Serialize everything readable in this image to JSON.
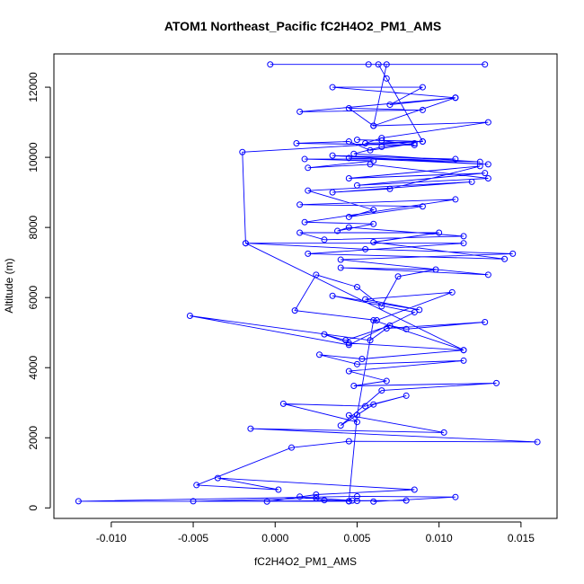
{
  "chart_data": {
    "type": "line",
    "title": "ATOM1 Northeast_Pacific fC2H4O2_PM1_AMS",
    "xlabel": "fC2H4O2_PM1_AMS",
    "ylabel": "Altitude (m)",
    "xlim": [
      -0.0135,
      0.0172
    ],
    "ylim": [
      -300,
      12950
    ],
    "xticks": [
      -0.01,
      -0.005,
      0.0,
      0.005,
      0.01,
      0.015
    ],
    "xtick_labels": [
      "-0.010",
      "-0.005",
      "0.000",
      "0.005",
      "0.010",
      "0.015"
    ],
    "yticks": [
      0,
      2000,
      4000,
      6000,
      8000,
      10000,
      12000
    ],
    "ytick_labels": [
      "0",
      "2000",
      "4000",
      "6000",
      "8000",
      "10000",
      "12000"
    ],
    "grid": false,
    "line_color": "#0000ff",
    "marker": "open-circle",
    "series": [
      {
        "name": "",
        "points": [
          [
            0.006,
            180
          ],
          [
            0.011,
            310
          ],
          [
            0.005,
            330
          ],
          [
            -0.012,
            190
          ],
          [
            0.0045,
            190
          ],
          [
            0.0047,
            210
          ],
          [
            0.0025,
            280
          ],
          [
            -0.005,
            190
          ],
          [
            0.008,
            210
          ],
          [
            0.005,
            200
          ],
          [
            0.003,
            220
          ],
          [
            0.0015,
            320
          ],
          [
            -0.0005,
            180
          ],
          [
            0.0025,
            380
          ],
          [
            0.0085,
            520
          ],
          [
            -0.0035,
            850
          ],
          [
            0.0002,
            520
          ],
          [
            -0.0048,
            650
          ],
          [
            0.001,
            1720
          ],
          [
            0.0045,
            1900
          ],
          [
            0.016,
            1880
          ],
          [
            -0.0015,
            2260
          ],
          [
            0.0103,
            2150
          ],
          [
            0.0045,
            2640
          ],
          [
            0.005,
            2450
          ],
          [
            0.0005,
            2970
          ],
          [
            0.0055,
            2900
          ],
          [
            0.008,
            3200
          ],
          [
            0.006,
            2950
          ],
          [
            0.004,
            2350
          ],
          [
            0.0065,
            3350
          ],
          [
            0.0135,
            3560
          ],
          [
            0.0048,
            3480
          ],
          [
            0.0068,
            3620
          ],
          [
            0.0045,
            3900
          ],
          [
            0.0115,
            4200
          ],
          [
            0.005,
            4100
          ],
          [
            0.0027,
            4370
          ],
          [
            0.0053,
            4250
          ],
          [
            0.0115,
            4500
          ],
          [
            0.0045,
            4700
          ],
          [
            0.003,
            4950
          ],
          [
            0.0043,
            4780
          ],
          [
            0.007,
            5200
          ],
          [
            0.008,
            5100
          ],
          [
            0.0128,
            5300
          ],
          [
            0.0068,
            5120
          ],
          [
            0.0058,
            4780
          ],
          [
            -0.0052,
            5480
          ],
          [
            0.0045,
            4650
          ],
          [
            0.0085,
            5580
          ],
          [
            0.0035,
            6050
          ],
          [
            0.0088,
            5650
          ],
          [
            0.0055,
            5950
          ],
          [
            0.0108,
            6150
          ],
          [
            0.0062,
            5350
          ],
          [
            0.0012,
            5630
          ],
          [
            0.0025,
            6650
          ],
          [
            0.005,
            6300
          ],
          [
            0.0065,
            5750
          ],
          [
            0.0075,
            6600
          ],
          [
            0.0098,
            6800
          ],
          [
            0.004,
            6850
          ],
          [
            0.013,
            6650
          ],
          [
            0.004,
            7080
          ],
          [
            0.0145,
            7250
          ],
          [
            0.0055,
            7380
          ],
          [
            -0.0018,
            7550
          ],
          [
            0.0115,
            7550
          ],
          [
            0.002,
            7250
          ],
          [
            0.014,
            7100
          ],
          [
            0.006,
            7580
          ],
          [
            0.01,
            7850
          ],
          [
            0.0015,
            7850
          ],
          [
            0.003,
            7650
          ],
          [
            0.0115,
            7750
          ],
          [
            0.0045,
            8000
          ],
          [
            0.0038,
            7900
          ],
          [
            0.006,
            8100
          ],
          [
            0.0018,
            8150
          ],
          [
            0.011,
            8800
          ],
          [
            0.0015,
            8650
          ],
          [
            0.009,
            8600
          ],
          [
            0.0045,
            8300
          ],
          [
            0.006,
            8500
          ],
          [
            0.002,
            9050
          ],
          [
            0.012,
            9300
          ],
          [
            0.0035,
            9000
          ],
          [
            0.007,
            9100
          ],
          [
            0.0125,
            9750
          ],
          [
            0.0045,
            9400
          ],
          [
            0.0128,
            9550
          ],
          [
            0.005,
            9200
          ],
          [
            0.013,
            9400
          ],
          [
            0.0058,
            9800
          ],
          [
            0.002,
            9700
          ],
          [
            0.006,
            9900
          ],
          [
            0.0018,
            9950
          ],
          [
            0.011,
            9950
          ],
          [
            0.0035,
            10050
          ],
          [
            0.013,
            9800
          ],
          [
            0.0045,
            9980
          ],
          [
            0.0125,
            9870
          ],
          [
            0.0048,
            10100
          ],
          [
            0.0065,
            10300
          ],
          [
            0.0085,
            10400
          ],
          [
            0.0058,
            10200
          ],
          [
            0.0045,
            10450
          ],
          [
            0.0013,
            10400
          ],
          [
            0.0085,
            10350
          ],
          [
            0.0065,
            10480
          ],
          [
            0.005,
            10500
          ],
          [
            0.009,
            10450
          ],
          [
            0.0055,
            10400
          ],
          [
            0.0065,
            10550
          ],
          [
            0.013,
            11000
          ],
          [
            0.006,
            10900
          ],
          [
            0.0045,
            11400
          ],
          [
            0.009,
            11350
          ],
          [
            0.0015,
            11300
          ],
          [
            0.011,
            11700
          ],
          [
            0.007,
            11500
          ],
          [
            0.009,
            12000
          ],
          [
            0.0035,
            12000
          ],
          [
            0.011,
            11700
          ],
          [
            0.006,
            10900
          ],
          [
            0.0068,
            12650
          ],
          [
            0.0128,
            12650
          ],
          [
            -0.0003,
            12650
          ],
          [
            0.0057,
            12650
          ],
          [
            0.0063,
            12650
          ],
          [
            0.0068,
            12250
          ],
          [
            0.009,
            10450
          ],
          [
            -0.002,
            10150
          ],
          [
            -0.0018,
            7550
          ],
          [
            0.0115,
            4500
          ],
          [
            0.006,
            5350
          ],
          [
            0.005,
            2650
          ],
          [
            0.0045,
            190
          ]
        ]
      }
    ]
  }
}
